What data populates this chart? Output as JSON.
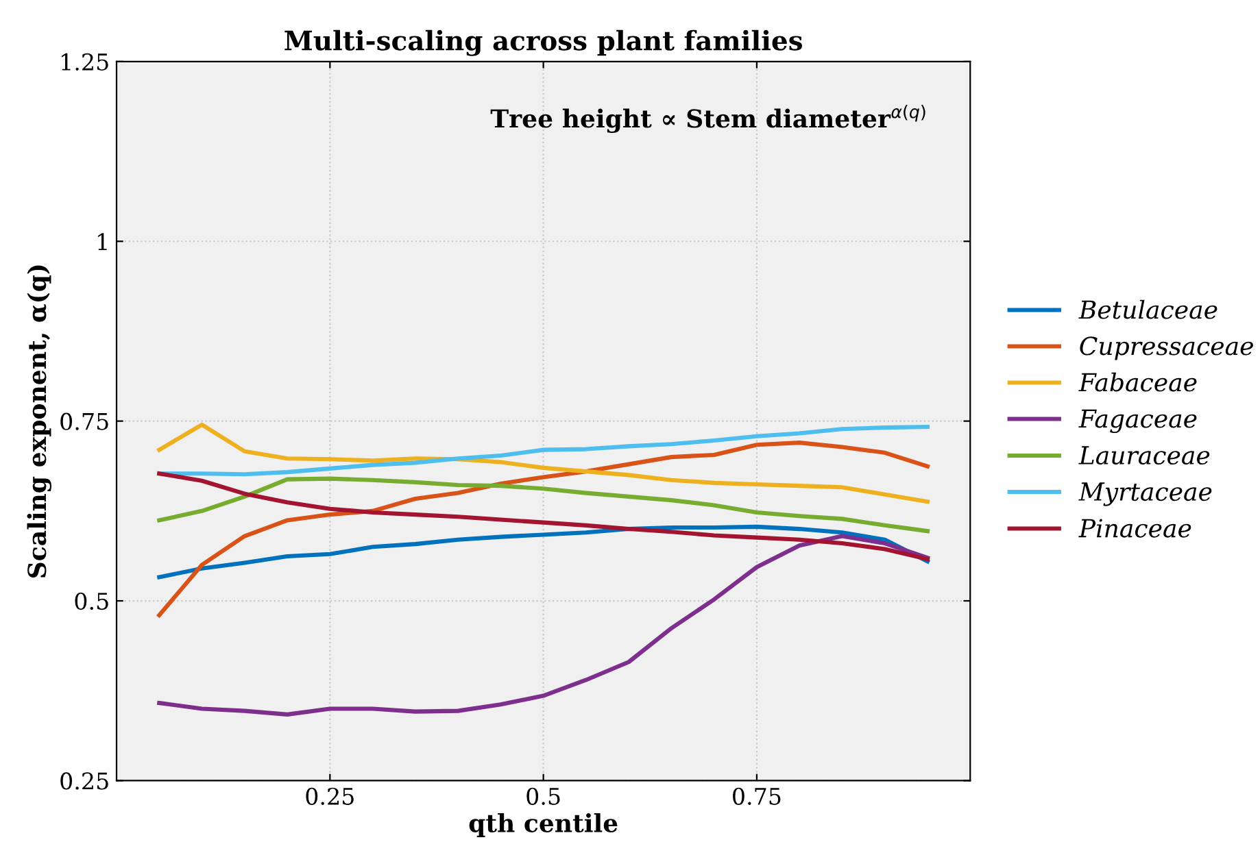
{
  "chart_data": {
    "type": "line",
    "title": "Multi-scaling across plant families",
    "xlabel": "qth centile",
    "ylabel": "Scaling exponent, α(q)",
    "annotations": [
      "Tree height ∝ Stem diameter$^{α(q)}$"
    ],
    "x": [
      0.05,
      0.1,
      0.15,
      0.2,
      0.25,
      0.3,
      0.35,
      0.4,
      0.45,
      0.5,
      0.55,
      0.6,
      0.65,
      0.7,
      0.75,
      0.8,
      0.85,
      0.9,
      0.95
    ],
    "series": [
      {
        "name": "Betulaceae",
        "color": "#0072bd",
        "values": [
          0.533,
          0.545,
          0.553,
          0.562,
          0.565,
          0.575,
          0.579,
          0.585,
          0.589,
          0.592,
          0.595,
          0.6,
          0.602,
          0.602,
          0.603,
          0.6,
          0.595,
          0.585,
          0.555
        ]
      },
      {
        "name": "Cupressaceae",
        "color": "#d95319",
        "values": [
          0.48,
          0.55,
          0.59,
          0.612,
          0.62,
          0.625,
          0.642,
          0.65,
          0.663,
          0.672,
          0.68,
          0.69,
          0.7,
          0.703,
          0.717,
          0.72,
          0.714,
          0.706,
          0.687
        ]
      },
      {
        "name": "Fabaceae",
        "color": "#edb120",
        "values": [
          0.71,
          0.745,
          0.708,
          0.698,
          0.697,
          0.695,
          0.698,
          0.697,
          0.693,
          0.685,
          0.68,
          0.675,
          0.668,
          0.664,
          0.662,
          0.66,
          0.658,
          0.648,
          0.638
        ]
      },
      {
        "name": "Fagaceae",
        "color": "#7e2f8e",
        "values": [
          0.358,
          0.35,
          0.347,
          0.342,
          0.35,
          0.35,
          0.346,
          0.347,
          0.356,
          0.368,
          0.39,
          0.415,
          0.462,
          0.502,
          0.547,
          0.577,
          0.59,
          0.58,
          0.56
        ]
      },
      {
        "name": "Lauraceae",
        "color": "#77ac30",
        "values": [
          0.612,
          0.625,
          0.645,
          0.669,
          0.67,
          0.668,
          0.665,
          0.661,
          0.66,
          0.656,
          0.65,
          0.645,
          0.64,
          0.633,
          0.623,
          0.618,
          0.614,
          0.605,
          0.597
        ]
      },
      {
        "name": "Myrtaceae",
        "color": "#4dbeee",
        "values": [
          0.677,
          0.677,
          0.676,
          0.679,
          0.684,
          0.689,
          0.692,
          0.698,
          0.702,
          0.71,
          0.711,
          0.715,
          0.718,
          0.723,
          0.729,
          0.733,
          0.739,
          0.741,
          0.742
        ]
      },
      {
        "name": "Pinaceae",
        "color": "#a2142f",
        "values": [
          0.677,
          0.667,
          0.649,
          0.637,
          0.628,
          0.623,
          0.62,
          0.617,
          0.613,
          0.609,
          0.605,
          0.6,
          0.596,
          0.591,
          0.588,
          0.585,
          0.58,
          0.572,
          0.558
        ]
      }
    ],
    "xlim": [
      0,
      1
    ],
    "ylim": [
      0.25,
      1.25
    ],
    "xticks": [
      0.25,
      0.5,
      0.75
    ],
    "yticks": [
      0.25,
      0.5,
      0.75,
      1,
      1.25
    ],
    "grid": true,
    "legend": "right",
    "line_style": "solid",
    "marker": "none"
  }
}
